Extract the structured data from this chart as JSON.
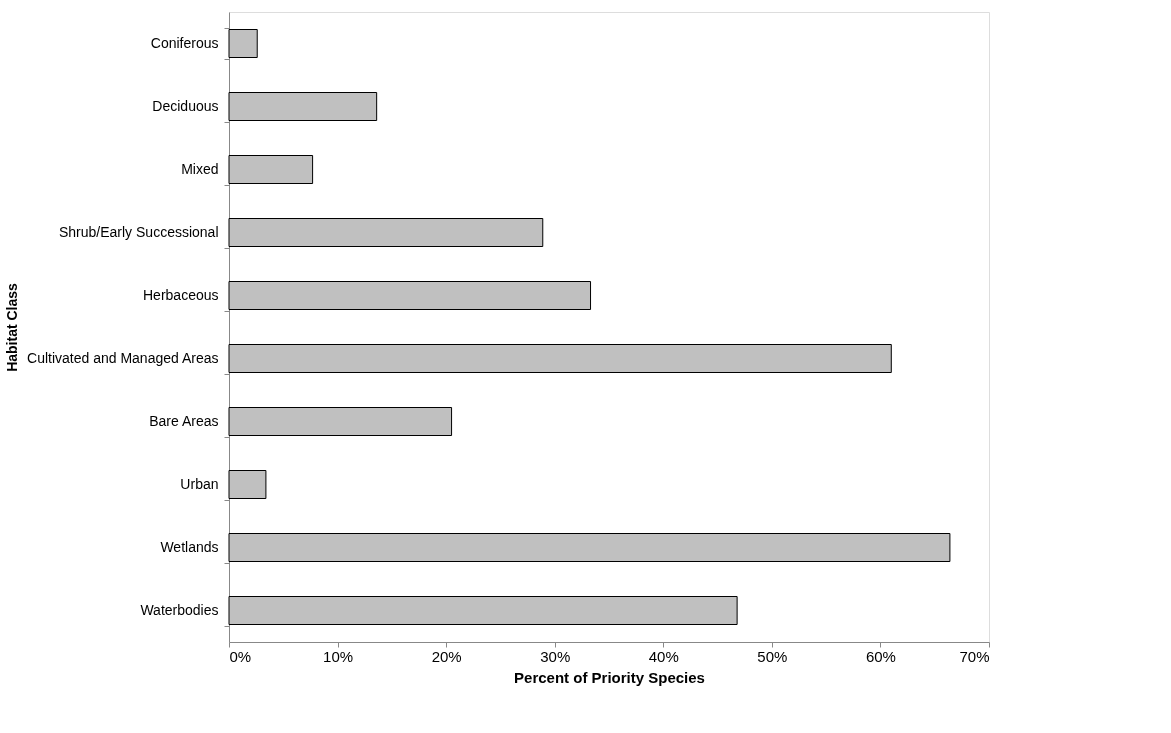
{
  "chart_data": {
    "type": "bar",
    "orientation": "horizontal",
    "xlabel": "Percent of Priority Species",
    "ylabel": "Habitat Class",
    "categories": [
      "Coniferous",
      "Deciduous",
      "Mixed",
      "Shrub/Early Successional",
      "Herbaceous",
      "Cultivated and Managed Areas",
      "Bare Areas",
      "Urban",
      "Wetlands",
      "Waterbodies"
    ],
    "values": [
      2.6,
      13.6,
      7.7,
      28.9,
      33.3,
      61.0,
      20.5,
      3.4,
      66.4,
      46.8
    ],
    "color": "#c0c0c0",
    "xlim": [
      0,
      70
    ],
    "xticks": [
      {
        "value": 0,
        "label": "0%"
      },
      {
        "value": 10,
        "label": "10%"
      },
      {
        "value": 20,
        "label": "20%"
      },
      {
        "value": 30,
        "label": "30%"
      },
      {
        "value": 40,
        "label": "40%"
      },
      {
        "value": 50,
        "label": "50%"
      },
      {
        "value": 60,
        "label": "60%"
      },
      {
        "value": 70,
        "label": "70%"
      }
    ],
    "grid": false
  }
}
